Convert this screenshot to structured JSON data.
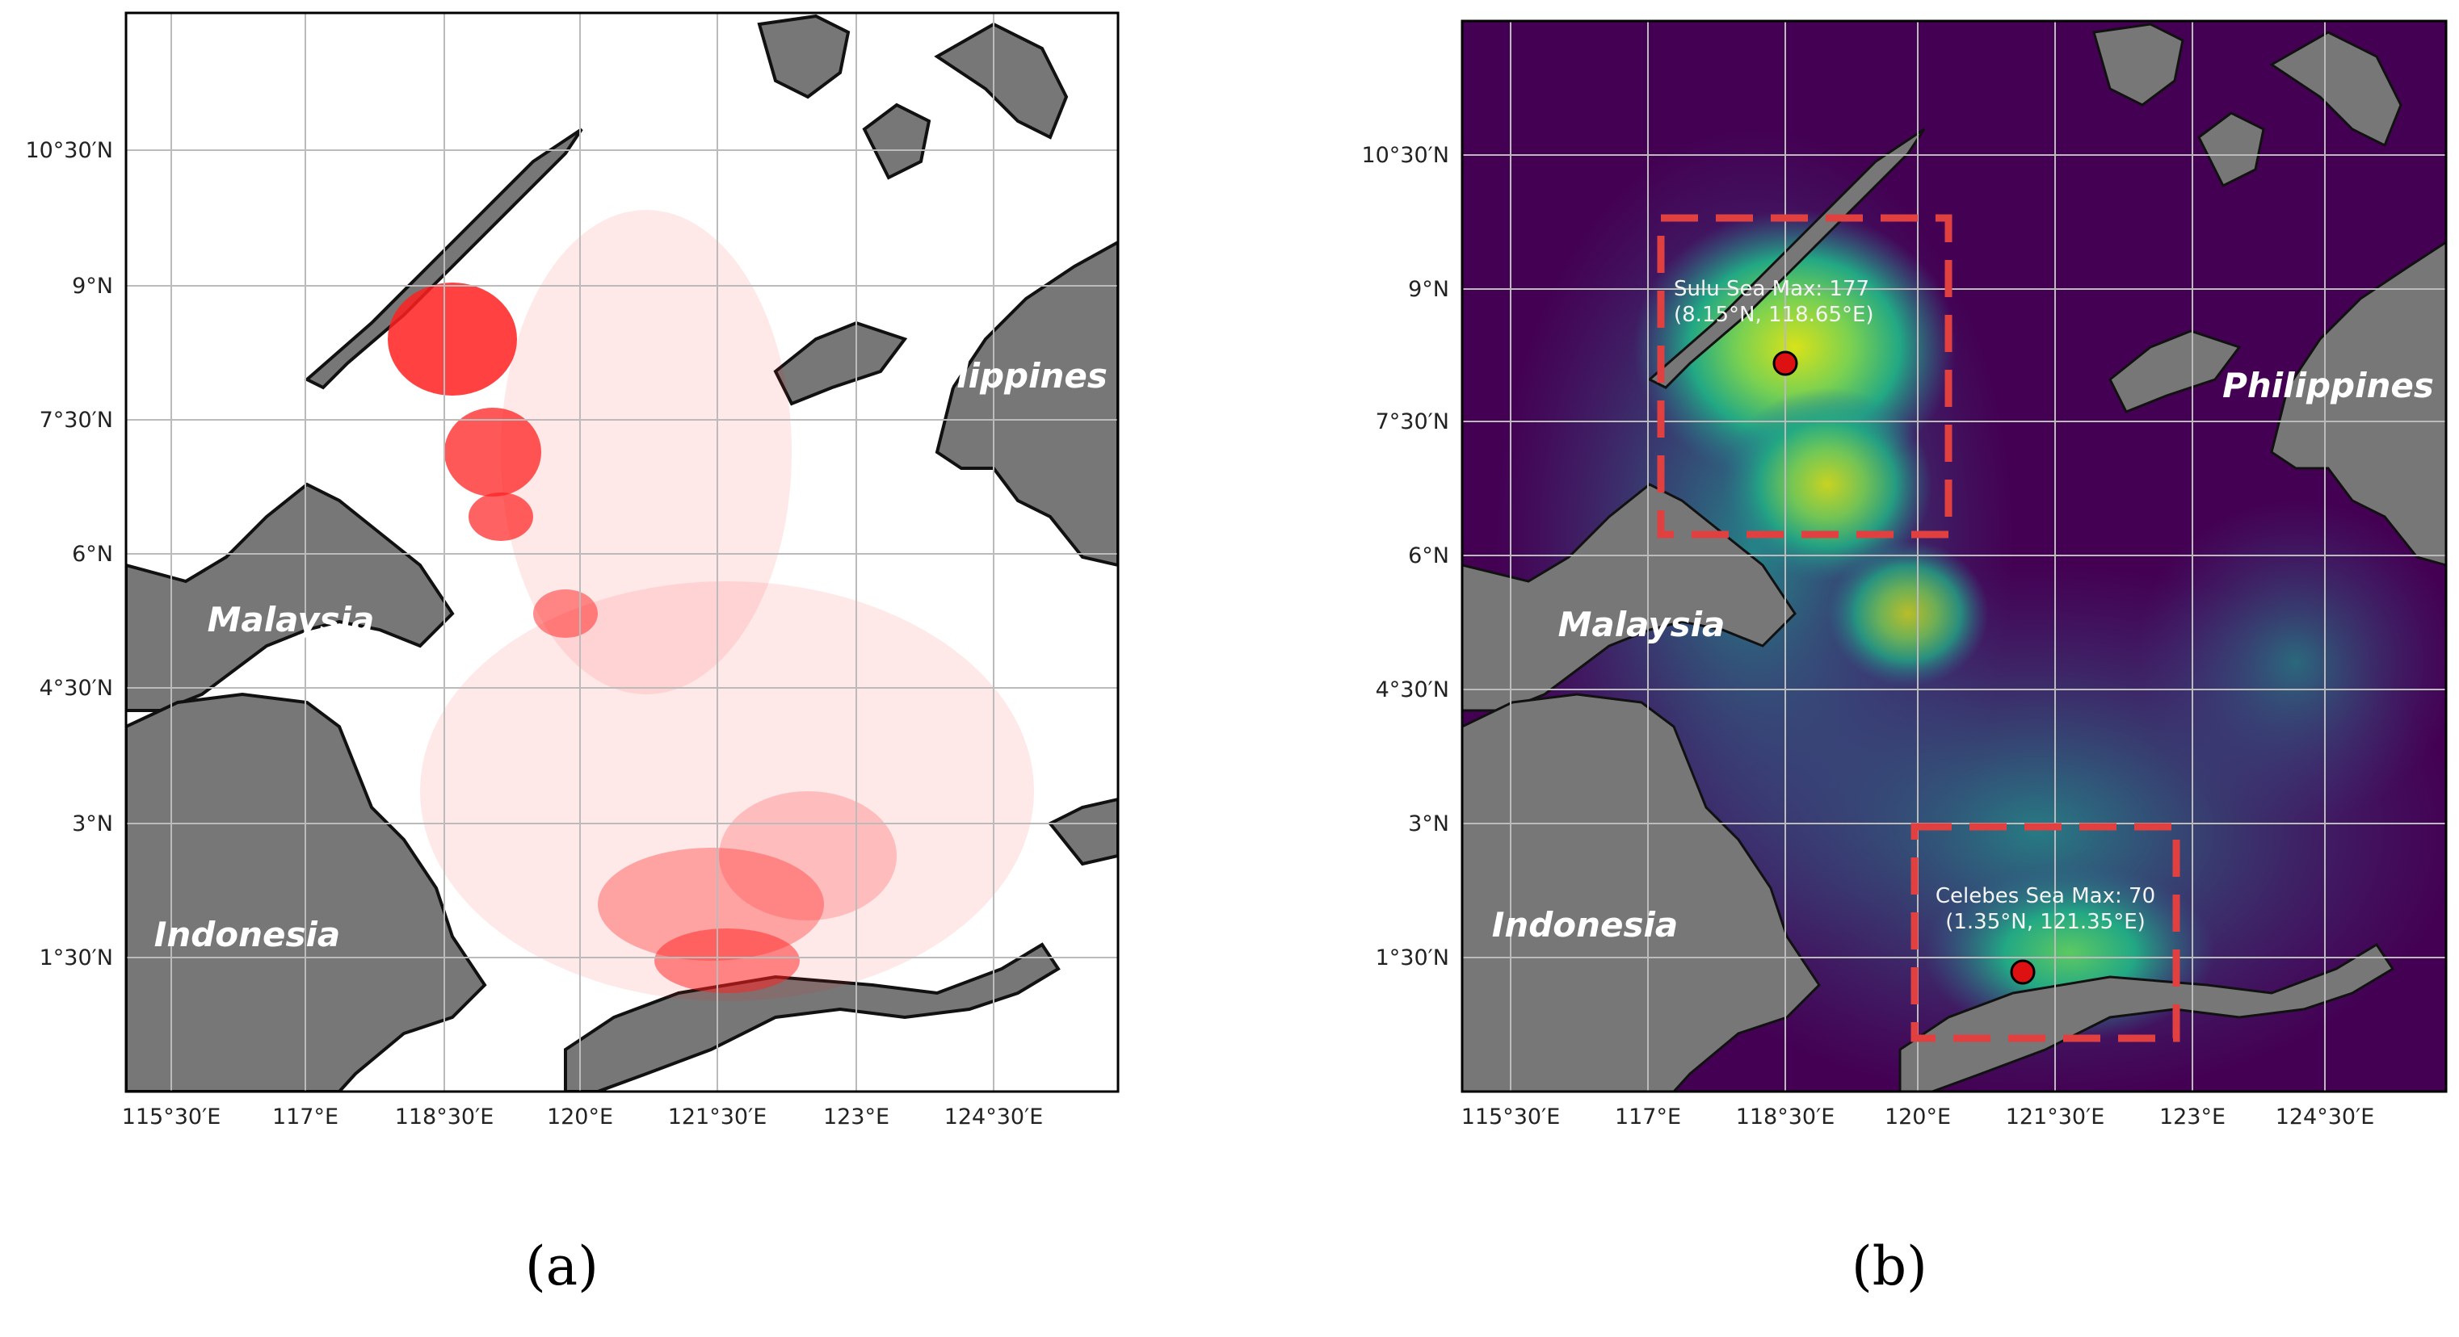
{
  "panels": [
    {
      "id": "a",
      "label": "(a)",
      "lat_ticks": [
        "10°30′N",
        "9°N",
        "7°30′N",
        "6°N",
        "4°30′N",
        "3°N",
        "1°30′N"
      ],
      "lon_ticks": [
        "115°30′E",
        "117°E",
        "118°30′E",
        "120°E",
        "121°30′E",
        "123°E",
        "124°30′E"
      ],
      "countries": [
        "Philippines",
        "Malaysia",
        "Indonesia"
      ],
      "colors": {
        "land": "#777777",
        "coast": "#111111",
        "sea": "#ffffff",
        "tracks": "#ff2020",
        "grid": "#bbbbbb"
      }
    },
    {
      "id": "b",
      "label": "(b)",
      "lat_ticks": [
        "10°30′N",
        "9°N",
        "7°30′N",
        "6°N",
        "4°30′N",
        "3°N",
        "1°30′N"
      ],
      "lon_ticks": [
        "115°30′E",
        "117°E",
        "118°30′E",
        "120°E",
        "121°30′E",
        "123°E",
        "124°30′E"
      ],
      "countries": [
        "Philippines",
        "Malaysia",
        "Indonesia"
      ],
      "annotations": {
        "sulu_line1": "Sulu Sea Max: 177",
        "sulu_line2": "(8.15°N, 118.65°E)",
        "celebes_line1": "Celebes Sea Max: 70",
        "celebes_line2": "(1.35°N, 121.35°E)"
      },
      "colors": {
        "land": "#777777",
        "sea": "#440154",
        "box": "#e04040",
        "marker": "#dd1111",
        "grid": "#bbbbbb"
      }
    }
  ]
}
